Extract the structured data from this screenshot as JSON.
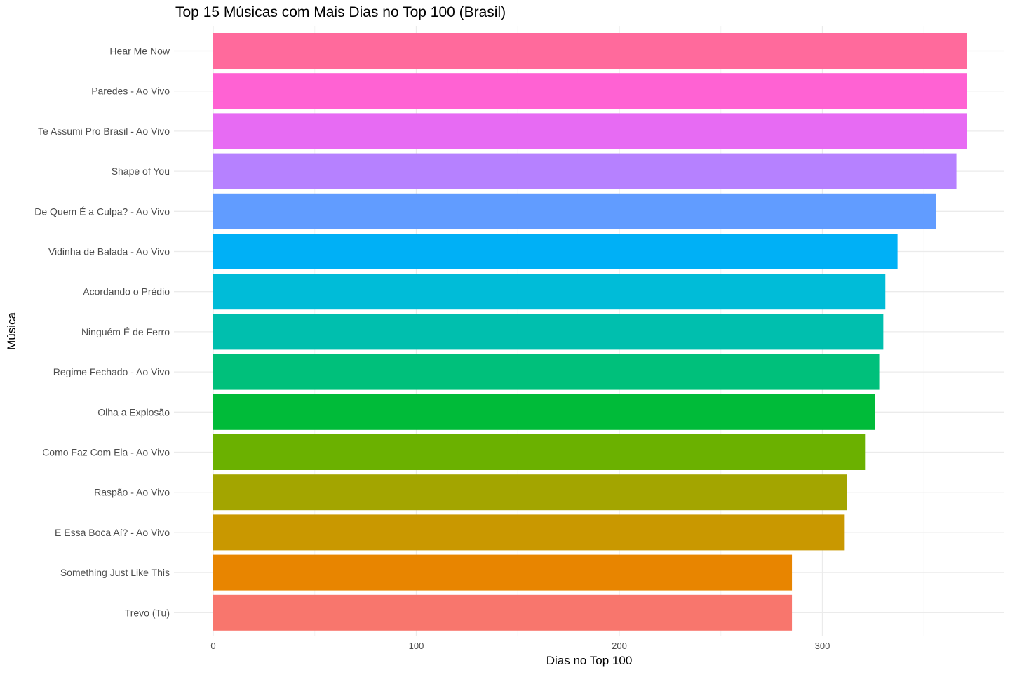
{
  "chart_data": {
    "type": "bar",
    "orientation": "horizontal",
    "title": "Top 15 Músicas com Mais Dias no Top 100 (Brasil)",
    "xlabel": "Dias no Top 100",
    "ylabel": "Música",
    "xlim": [
      0,
      390
    ],
    "x_ticks": [
      0,
      100,
      200,
      300
    ],
    "grid": true,
    "legend": "none",
    "categories": [
      "Hear Me Now",
      "Paredes - Ao Vivo",
      "Te Assumi Pro Brasil - Ao Vivo",
      "Shape of You",
      "De Quem É a Culpa? - Ao Vivo",
      "Vidinha de Balada - Ao Vivo",
      "Acordando o Prédio",
      "Ninguém É de Ferro",
      "Regime Fechado - Ao Vivo",
      "Olha a Explosão",
      "Como Faz Com Ela - Ao Vivo",
      "Raspão - Ao Vivo",
      "E Essa Boca Aí? - Ao Vivo",
      "Something Just Like This",
      "Trevo (Tu)"
    ],
    "values": [
      371,
      371,
      371,
      366,
      356,
      337,
      331,
      330,
      328,
      326,
      321,
      312,
      311,
      285,
      285
    ],
    "colors": [
      "#FF6A9C",
      "#FF62D3",
      "#E76BF3",
      "#B681FF",
      "#619CFF",
      "#00B0F6",
      "#00BCD8",
      "#00BFAE",
      "#00C07B",
      "#00BB39",
      "#6BB100",
      "#A3A500",
      "#C99800",
      "#E88500",
      "#F8766D"
    ]
  }
}
